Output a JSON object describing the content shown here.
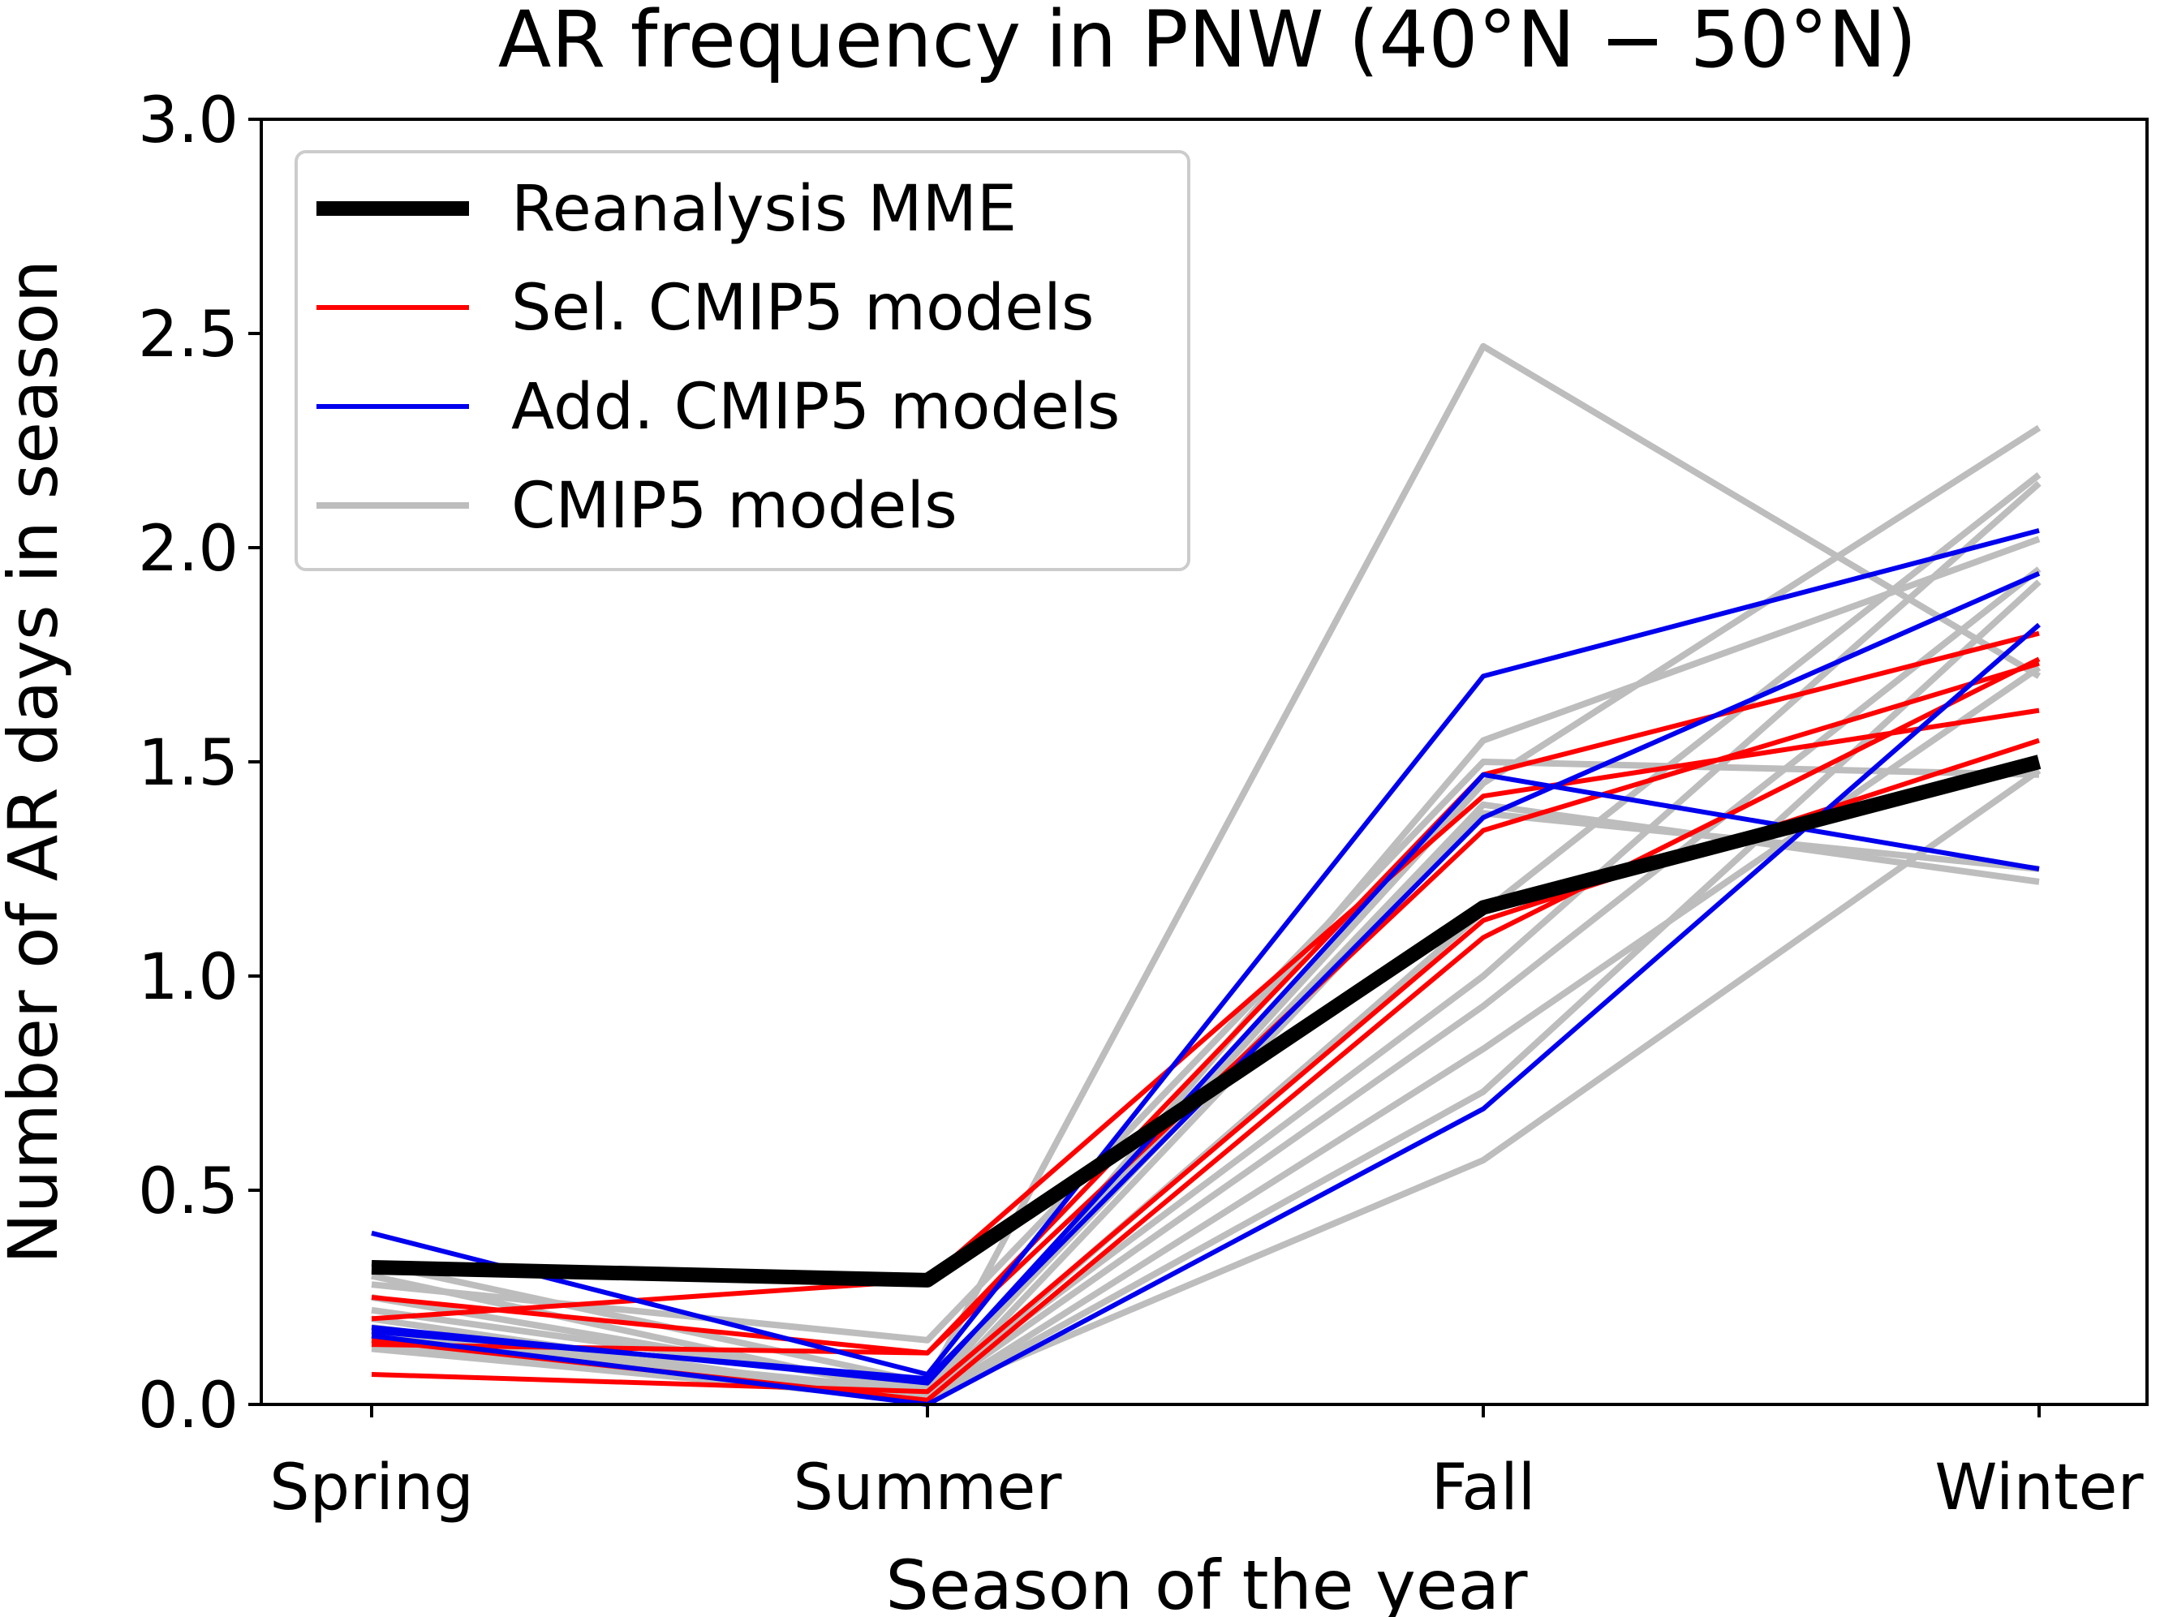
{
  "chart_data": {
    "type": "line",
    "title": "AR frequency in PNW (40°N − 50°N)",
    "xlabel": "Season of the year",
    "ylabel": "Number of AR days in season",
    "categories": [
      "Spring",
      "Summer",
      "Fall",
      "Winter"
    ],
    "ylim": [
      0,
      3.0
    ],
    "yticks": [
      "0.0",
      "0.5",
      "1.0",
      "1.5",
      "2.0",
      "2.5",
      "3.0"
    ],
    "grid": false,
    "legend_position": "upper-left",
    "legend": [
      {
        "label": "Reanalysis MME",
        "color": "#000000",
        "group": "reanalysis"
      },
      {
        "label": "Sel. CMIP5 models",
        "color": "#ff0000",
        "group": "sel"
      },
      {
        "label": "Add. CMIP5 models",
        "color": "#0000ee",
        "group": "add"
      },
      {
        "label": "CMIP5 models",
        "color": "#bdbdbd",
        "group": "cmip5"
      }
    ],
    "series": [
      {
        "group": "cmip5",
        "values": [
          0.33,
          0.05,
          2.47,
          1.7
        ]
      },
      {
        "group": "cmip5",
        "values": [
          0.3,
          0.02,
          1.55,
          2.02
        ]
      },
      {
        "group": "cmip5",
        "values": [
          0.28,
          0.15,
          1.5,
          1.47
        ]
      },
      {
        "group": "cmip5",
        "values": [
          0.25,
          0.03,
          1.45,
          2.28
        ]
      },
      {
        "group": "cmip5",
        "values": [
          0.22,
          0.04,
          1.4,
          1.22
        ]
      },
      {
        "group": "cmip5",
        "values": [
          0.2,
          0.01,
          1.38,
          1.25
        ]
      },
      {
        "group": "cmip5",
        "values": [
          0.18,
          0.02,
          1.15,
          2.17
        ]
      },
      {
        "group": "cmip5",
        "values": [
          0.16,
          0.03,
          1.0,
          2.15
        ]
      },
      {
        "group": "cmip5",
        "values": [
          0.15,
          0.02,
          0.93,
          1.95
        ]
      },
      {
        "group": "cmip5",
        "values": [
          0.14,
          0.01,
          0.83,
          1.72
        ]
      },
      {
        "group": "cmip5",
        "values": [
          0.13,
          0.01,
          0.73,
          1.92
        ]
      },
      {
        "group": "cmip5",
        "values": [
          0.17,
          0.02,
          0.57,
          1.48
        ]
      },
      {
        "group": "sel",
        "values": [
          0.25,
          0.12,
          1.47,
          1.8
        ]
      },
      {
        "group": "sel",
        "values": [
          0.2,
          0.29,
          1.42,
          1.62
        ]
      },
      {
        "group": "sel",
        "values": [
          0.14,
          0.12,
          1.34,
          1.73
        ]
      },
      {
        "group": "sel",
        "values": [
          0.07,
          0.03,
          1.13,
          1.55
        ]
      },
      {
        "group": "sel",
        "values": [
          0.15,
          0.01,
          1.09,
          1.74
        ]
      },
      {
        "group": "add",
        "values": [
          0.4,
          0.07,
          1.7,
          2.04
        ]
      },
      {
        "group": "add",
        "values": [
          0.18,
          0.05,
          1.47,
          1.25
        ]
      },
      {
        "group": "add",
        "values": [
          0.17,
          0.06,
          1.37,
          1.94
        ]
      },
      {
        "group": "add",
        "values": [
          0.16,
          0.0,
          0.69,
          1.82
        ]
      },
      {
        "group": "reanalysis",
        "values": [
          0.32,
          0.29,
          1.16,
          1.5
        ]
      }
    ]
  }
}
